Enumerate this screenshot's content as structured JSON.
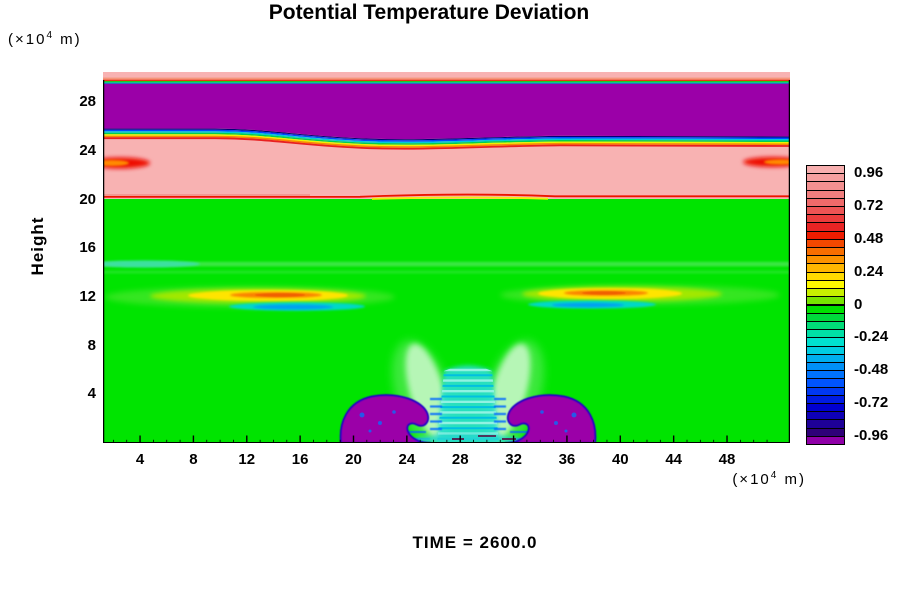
{
  "header": {
    "title": "Potential Temperature Deviation"
  },
  "y_axis": {
    "label": "Height",
    "unit_prefix": "(×10",
    "unit_sup": "4",
    "unit_suffix": " m)",
    "ticks": [
      4,
      8,
      12,
      16,
      20,
      24,
      28
    ]
  },
  "x_axis": {
    "unit_prefix": "(×10",
    "unit_sup": "4",
    "unit_suffix": " m)",
    "ticks": [
      4,
      8,
      12,
      16,
      20,
      24,
      28,
      32,
      36,
      40,
      44,
      48
    ]
  },
  "footer": {
    "time_label": "TIME = 2600.0"
  },
  "colorbar": {
    "labels": [
      "0.96",
      "0.72",
      "0.48",
      "0.24",
      "0",
      "-0.24",
      "-0.48",
      "-0.72",
      "-0.96"
    ],
    "cells": [
      "#F7AFAF",
      "#F5A0A0",
      "#F39090",
      "#F17E7E",
      "#EF6A6A",
      "#ED5454",
      "#EB3C3C",
      "#E92424",
      "#EE1C00",
      "#F34800",
      "#F86E00",
      "#FC9200",
      "#FFB600",
      "#FFDA00",
      "#FFFA00",
      "#C8F000",
      "#78E400",
      "#00E000",
      "#00D93C",
      "#00DC78",
      "#00DFA6",
      "#00E0D0",
      "#00CCE2",
      "#00AEEE",
      "#0090F6",
      "#0072FC",
      "#0054FF",
      "#0038F2",
      "#001CE2",
      "#0000D0",
      "#0E00B6",
      "#1E0098",
      "#2E0078",
      "#9000A8"
    ]
  },
  "palette": {
    "pink_bg": "#F8B2B2",
    "green_bg": "#00E400",
    "purple_band": "#9B00A8",
    "salmon_line": "#F4967A",
    "red_line": "#EE2200",
    "green_line": "#22C822",
    "cyan_line": "#00C2D8",
    "navy_line": "#000078",
    "stripe_blue": "#0048FF",
    "stripe_cyan": "#00C8DC",
    "stripe_green": "#00D050",
    "stripe_yellow": "#EEF200",
    "stripe_orange": "#FA8800",
    "stripe_red": "#E82020",
    "boundary_salmon": "#EC8070",
    "boundary_red": "#EE1400",
    "boundary_yellow": "#F2F000",
    "band_green": "#55E860",
    "band_cyan": "#3CE0B0",
    "halo_green": "#62E83C",
    "lens_green": "#A2E800",
    "lens_yellow": "#FFE400",
    "lens_orange": "#FA8200",
    "lens_deep_orange": "#F06000",
    "streak_cyan": "#00D8C8",
    "streak_blue": "#00A0F0",
    "blob_red": "#EE1100",
    "blob_orange": "#FF8A00",
    "plume_mint": "#C4F8C4",
    "plume_green": "#86EE86",
    "column_cyan": "#2BE0C8",
    "column_light": "#90F2E2",
    "column_stripe": "#00C0E0",
    "column_blue": "#0068FF",
    "skirt_cyan": "#28D8D0",
    "lobe_purple": "#9B00A8",
    "lobe_outline": "#2400C4",
    "speckle_blue": "#2858E8",
    "dash_dark": "#5A0038",
    "frame": "#000000"
  },
  "chart_data": {
    "type": "filled_contour",
    "title": "Potential Temperature Deviation",
    "xlabel": "(×10^4 m)",
    "ylabel": "Height (×10^4 m)",
    "x_ticks": [
      4,
      8,
      12,
      16,
      20,
      24,
      28,
      32,
      36,
      40,
      44,
      48
    ],
    "y_ticks": [
      4,
      8,
      12,
      16,
      20,
      24,
      28
    ],
    "x_range": [
      1,
      52.7
    ],
    "y_range": [
      0,
      30.5
    ],
    "time": 2600.0,
    "colorbar": {
      "min": -1.02,
      "max": 1.02,
      "interval": 0.06,
      "n_cells": 34,
      "tick_values": [
        0.96,
        0.72,
        0.48,
        0.24,
        0,
        -0.24,
        -0.48,
        -0.72,
        -0.96
      ],
      "colormap": "rainbow: pink(+1) red orange yellow green(0) cyan blue navy purple(-1)"
    },
    "features": [
      {
        "name": "negative stratified layer (purple, theta' ~ -1)",
        "x": [
          1,
          52.7
        ],
        "z": [
          25.8,
          29.5
        ]
      },
      {
        "name": "positive layer (pink, theta' ~ +1)",
        "x": [
          1,
          52.7
        ],
        "z": [
          20.1,
          25.8
        ]
      },
      {
        "name": "thin pink cap above purple layer",
        "x": [
          1,
          52.7
        ],
        "z": [
          29.5,
          30.5
        ]
      },
      {
        "name": "warm anomaly blob at left edge (theta' ~ +0.5)",
        "x": [
          1,
          4
        ],
        "z": [
          22.5,
          23.5
        ]
      },
      {
        "name": "warm anomaly blob at right edge (theta' ~ +0.5)",
        "x": [
          49,
          52.7
        ],
        "z": [
          22.5,
          23.5
        ]
      },
      {
        "name": "sharp red gradient line at pink/green interface",
        "x": [
          1,
          52.7
        ],
        "z": [
          20.0,
          20.4
        ]
      },
      {
        "name": "warm lens left (yellow-orange, theta' ~ +0.35)",
        "x": [
          8,
          20
        ],
        "z": [
          11.5,
          12.6
        ]
      },
      {
        "name": "cool streak under left lens (cyan-blue, theta' ~ -0.4)",
        "x": [
          11,
          20
        ],
        "z": [
          10.9,
          11.6
        ]
      },
      {
        "name": "warm lens right (yellow-orange, theta' ~ +0.35)",
        "x": [
          33,
          45
        ],
        "z": [
          11.5,
          12.6
        ]
      },
      {
        "name": "cool streak under right lens (cyan-blue, theta' ~ -0.4)",
        "x": [
          33,
          42
        ],
        "z": [
          10.9,
          11.6
        ]
      },
      {
        "name": "light green layer bands",
        "x": [
          1,
          52.7
        ],
        "z": [
          14.1,
          14.9
        ]
      },
      {
        "name": "surface cold bubble, two purple lobes (theta' ~ -1)",
        "x": [
          19,
          38.5
        ],
        "z": [
          0,
          3.9
        ]
      },
      {
        "name": "cyan updraft column between lobes",
        "x": [
          25.5,
          31.5
        ],
        "z": [
          0,
          6.4
        ]
      },
      {
        "name": "pale green plumes rising above cold bubble",
        "x": [
          23,
          34
        ],
        "z": [
          3,
          8.3
        ]
      },
      {
        "name": "neutral background (green, theta' ~ 0)",
        "x": [
          1,
          52.7
        ],
        "z": [
          0,
          20
        ]
      }
    ]
  }
}
